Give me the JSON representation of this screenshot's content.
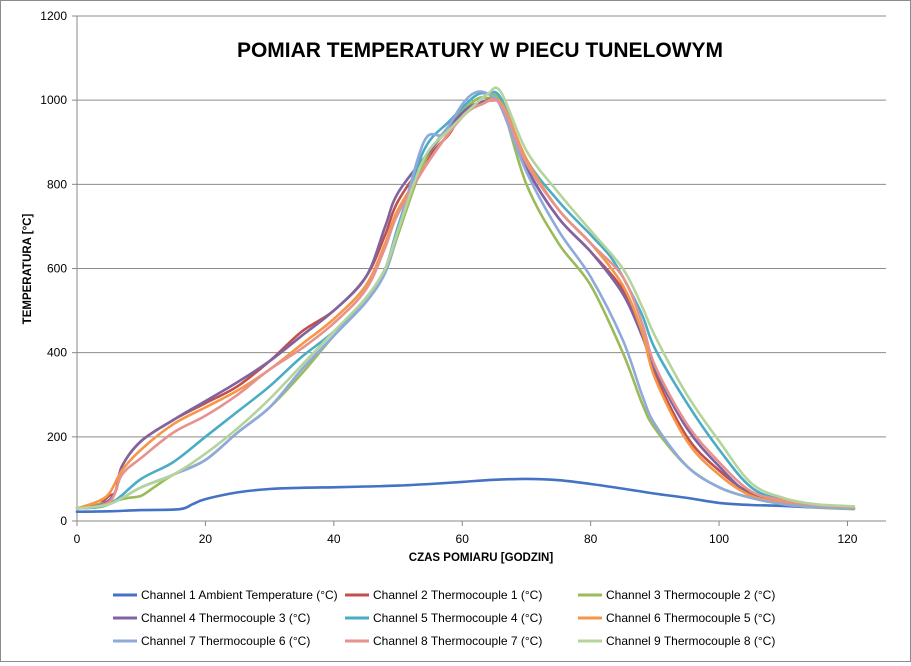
{
  "chart_data": {
    "type": "line",
    "title": "POMIAR TEMPERATURY W PIECU TUNELOWYM",
    "xlabel": "CZAS POMIARU [GODZIN]",
    "ylabel": "TEMPERATURA [°C]",
    "xlim": [
      0,
      126
    ],
    "ylim": [
      0,
      1200
    ],
    "xticks": [
      0,
      20,
      40,
      60,
      80,
      100,
      120
    ],
    "yticks": [
      0,
      200,
      400,
      600,
      800,
      1000,
      1200
    ],
    "grid": "horizontal",
    "legend_position": "bottom",
    "series": [
      {
        "name": "Channel 1 Ambient Temperature (°C)",
        "color": "#4472c4",
        "points": [
          [
            0,
            22
          ],
          [
            5,
            23
          ],
          [
            10,
            26
          ],
          [
            16,
            28
          ],
          [
            18,
            40
          ],
          [
            20,
            52
          ],
          [
            25,
            68
          ],
          [
            30,
            76
          ],
          [
            35,
            79
          ],
          [
            40,
            80
          ],
          [
            45,
            82
          ],
          [
            50,
            84
          ],
          [
            55,
            88
          ],
          [
            60,
            93
          ],
          [
            65,
            98
          ],
          [
            70,
            100
          ],
          [
            75,
            97
          ],
          [
            80,
            88
          ],
          [
            85,
            77
          ],
          [
            90,
            65
          ],
          [
            95,
            55
          ],
          [
            100,
            43
          ],
          [
            105,
            38
          ],
          [
            110,
            36
          ],
          [
            115,
            32
          ],
          [
            121,
            30
          ]
        ]
      },
      {
        "name": "Channel 2 Thermocouple 1 (°C)",
        "color": "#c0504d",
        "points": [
          [
            0,
            30
          ],
          [
            3,
            35
          ],
          [
            5,
            60
          ],
          [
            6,
            70
          ],
          [
            7,
            130
          ],
          [
            10,
            190
          ],
          [
            15,
            240
          ],
          [
            20,
            280
          ],
          [
            25,
            320
          ],
          [
            30,
            380
          ],
          [
            35,
            450
          ],
          [
            40,
            500
          ],
          [
            45,
            580
          ],
          [
            48,
            680
          ],
          [
            50,
            760
          ],
          [
            55,
            870
          ],
          [
            58,
            920
          ],
          [
            60,
            970
          ],
          [
            62,
            990
          ],
          [
            65,
            1000
          ],
          [
            66,
            985
          ],
          [
            70,
            840
          ],
          [
            75,
            720
          ],
          [
            80,
            640
          ],
          [
            85,
            550
          ],
          [
            88,
            450
          ],
          [
            90,
            350
          ],
          [
            95,
            200
          ],
          [
            100,
            120
          ],
          [
            105,
            65
          ],
          [
            110,
            45
          ],
          [
            115,
            35
          ],
          [
            121,
            30
          ]
        ]
      },
      {
        "name": "Channel 3 Thermocouple 2 (°C)",
        "color": "#9bbb59",
        "points": [
          [
            0,
            30
          ],
          [
            5,
            45
          ],
          [
            8,
            55
          ],
          [
            10,
            60
          ],
          [
            12,
            80
          ],
          [
            15,
            110
          ],
          [
            20,
            145
          ],
          [
            25,
            210
          ],
          [
            30,
            270
          ],
          [
            35,
            350
          ],
          [
            40,
            440
          ],
          [
            45,
            520
          ],
          [
            48,
            590
          ],
          [
            50,
            680
          ],
          [
            54,
            850
          ],
          [
            58,
            940
          ],
          [
            62,
            1000
          ],
          [
            64,
            1005
          ],
          [
            66,
            995
          ],
          [
            70,
            800
          ],
          [
            75,
            660
          ],
          [
            80,
            560
          ],
          [
            85,
            400
          ],
          [
            88,
            280
          ],
          [
            90,
            220
          ],
          [
            95,
            130
          ],
          [
            100,
            80
          ],
          [
            105,
            55
          ],
          [
            110,
            40
          ],
          [
            115,
            32
          ],
          [
            121,
            28
          ]
        ]
      },
      {
        "name": "Channel 4 Thermocouple 3 (°C)",
        "color": "#8064a2",
        "points": [
          [
            0,
            30
          ],
          [
            4,
            40
          ],
          [
            6,
            70
          ],
          [
            7,
            130
          ],
          [
            10,
            190
          ],
          [
            15,
            240
          ],
          [
            20,
            285
          ],
          [
            25,
            330
          ],
          [
            30,
            380
          ],
          [
            35,
            440
          ],
          [
            40,
            500
          ],
          [
            45,
            580
          ],
          [
            48,
            700
          ],
          [
            50,
            780
          ],
          [
            55,
            880
          ],
          [
            60,
            970
          ],
          [
            63,
            995
          ],
          [
            66,
            990
          ],
          [
            70,
            840
          ],
          [
            75,
            720
          ],
          [
            80,
            640
          ],
          [
            85,
            540
          ],
          [
            88,
            440
          ],
          [
            90,
            360
          ],
          [
            95,
            220
          ],
          [
            100,
            130
          ],
          [
            105,
            60
          ],
          [
            110,
            45
          ],
          [
            115,
            35
          ],
          [
            121,
            30
          ]
        ]
      },
      {
        "name": "Channel 5 Thermocouple 4 (°C)",
        "color": "#4bacc6",
        "points": [
          [
            0,
            30
          ],
          [
            5,
            40
          ],
          [
            10,
            100
          ],
          [
            15,
            140
          ],
          [
            20,
            200
          ],
          [
            25,
            260
          ],
          [
            30,
            320
          ],
          [
            35,
            390
          ],
          [
            40,
            450
          ],
          [
            45,
            530
          ],
          [
            48,
            600
          ],
          [
            50,
            700
          ],
          [
            54,
            880
          ],
          [
            58,
            950
          ],
          [
            62,
            1010
          ],
          [
            64,
            1015
          ],
          [
            66,
            1005
          ],
          [
            70,
            860
          ],
          [
            75,
            760
          ],
          [
            80,
            680
          ],
          [
            83,
            630
          ],
          [
            85,
            580
          ],
          [
            88,
            490
          ],
          [
            90,
            410
          ],
          [
            95,
            280
          ],
          [
            100,
            170
          ],
          [
            105,
            80
          ],
          [
            110,
            50
          ],
          [
            115,
            38
          ],
          [
            121,
            33
          ]
        ]
      },
      {
        "name": "Channel 6 Thermocouple 5 (°C)",
        "color": "#f79646",
        "points": [
          [
            0,
            30
          ],
          [
            3,
            45
          ],
          [
            5,
            65
          ],
          [
            7,
            120
          ],
          [
            10,
            170
          ],
          [
            15,
            230
          ],
          [
            20,
            270
          ],
          [
            25,
            310
          ],
          [
            30,
            360
          ],
          [
            35,
            420
          ],
          [
            40,
            480
          ],
          [
            45,
            560
          ],
          [
            48,
            660
          ],
          [
            50,
            740
          ],
          [
            55,
            860
          ],
          [
            60,
            960
          ],
          [
            63,
            990
          ],
          [
            66,
            995
          ],
          [
            70,
            860
          ],
          [
            75,
            740
          ],
          [
            80,
            660
          ],
          [
            85,
            560
          ],
          [
            88,
            450
          ],
          [
            90,
            340
          ],
          [
            95,
            190
          ],
          [
            100,
            110
          ],
          [
            105,
            60
          ],
          [
            110,
            45
          ],
          [
            115,
            35
          ],
          [
            121,
            30
          ]
        ]
      },
      {
        "name": "Channel 7 Thermocouple 6 (°C)",
        "color": "#8ea9db",
        "points": [
          [
            0,
            30
          ],
          [
            5,
            40
          ],
          [
            10,
            80
          ],
          [
            15,
            110
          ],
          [
            20,
            145
          ],
          [
            25,
            210
          ],
          [
            30,
            270
          ],
          [
            35,
            360
          ],
          [
            40,
            440
          ],
          [
            45,
            520
          ],
          [
            48,
            590
          ],
          [
            50,
            690
          ],
          [
            54,
            900
          ],
          [
            57,
            920
          ],
          [
            60,
            990
          ],
          [
            62,
            1018
          ],
          [
            64,
            1015
          ],
          [
            66,
            985
          ],
          [
            70,
            830
          ],
          [
            75,
            690
          ],
          [
            80,
            580
          ],
          [
            85,
            430
          ],
          [
            88,
            300
          ],
          [
            90,
            230
          ],
          [
            95,
            130
          ],
          [
            100,
            80
          ],
          [
            105,
            55
          ],
          [
            110,
            40
          ],
          [
            115,
            33
          ],
          [
            121,
            30
          ]
        ]
      },
      {
        "name": "Channel 8 Thermocouple 7 (°C)",
        "color": "#e6928f",
        "points": [
          [
            0,
            30
          ],
          [
            5,
            45
          ],
          [
            7,
            110
          ],
          [
            10,
            150
          ],
          [
            15,
            210
          ],
          [
            20,
            250
          ],
          [
            25,
            300
          ],
          [
            30,
            360
          ],
          [
            35,
            410
          ],
          [
            40,
            470
          ],
          [
            45,
            550
          ],
          [
            48,
            650
          ],
          [
            50,
            730
          ],
          [
            55,
            860
          ],
          [
            60,
            960
          ],
          [
            63,
            990
          ],
          [
            66,
            990
          ],
          [
            70,
            850
          ],
          [
            75,
            740
          ],
          [
            80,
            660
          ],
          [
            85,
            580
          ],
          [
            88,
            470
          ],
          [
            90,
            370
          ],
          [
            95,
            230
          ],
          [
            100,
            140
          ],
          [
            105,
            70
          ],
          [
            110,
            50
          ],
          [
            115,
            38
          ],
          [
            121,
            33
          ]
        ]
      },
      {
        "name": "Channel 9 Thermocouple 8 (°C)",
        "color": "#b4d49b",
        "points": [
          [
            0,
            30
          ],
          [
            5,
            40
          ],
          [
            10,
            80
          ],
          [
            15,
            110
          ],
          [
            20,
            160
          ],
          [
            25,
            220
          ],
          [
            30,
            290
          ],
          [
            35,
            370
          ],
          [
            40,
            450
          ],
          [
            45,
            530
          ],
          [
            48,
            600
          ],
          [
            50,
            690
          ],
          [
            54,
            860
          ],
          [
            58,
            930
          ],
          [
            62,
            990
          ],
          [
            64,
            1015
          ],
          [
            66,
            1020
          ],
          [
            70,
            880
          ],
          [
            75,
            780
          ],
          [
            80,
            690
          ],
          [
            85,
            600
          ],
          [
            88,
            510
          ],
          [
            90,
            440
          ],
          [
            95,
            300
          ],
          [
            100,
            190
          ],
          [
            105,
            90
          ],
          [
            110,
            55
          ],
          [
            115,
            40
          ],
          [
            121,
            35
          ]
        ]
      }
    ]
  }
}
